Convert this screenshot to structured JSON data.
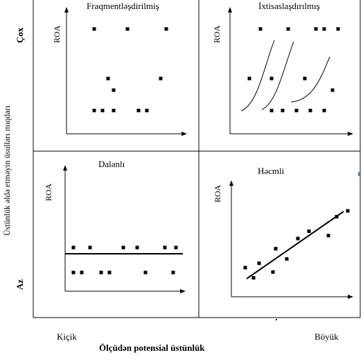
{
  "y_axis": {
    "label": "Üstünlük əldə etməyin üsulları mıqdarı",
    "top_label": "Çox",
    "bottom_label": "Az"
  },
  "x_axis": {
    "label": "Ölçüdən potensial üstünlük",
    "left_label": "Kiçik",
    "right_label": "Böyük"
  },
  "panels": [
    {
      "id": "fragmented",
      "title": "Fraqmentləşdirilmiş",
      "axis_label": "ROA",
      "points": [
        [
          1,
          7.2
        ],
        [
          2.2,
          7.2
        ],
        [
          3.6,
          7.2
        ],
        [
          1.5,
          3.8
        ],
        [
          3.4,
          3.8
        ],
        [
          1.7,
          3.0
        ],
        [
          1,
          1.6
        ],
        [
          1.3,
          1.6
        ],
        [
          1.7,
          1.6
        ],
        [
          2.6,
          1.6
        ],
        [
          2.9,
          1.6
        ]
      ]
    },
    {
      "id": "specialized",
      "title": "İxtisaslaşdırılmış",
      "axis_label": "ROA",
      "points": [
        [
          1.1,
          7.2
        ],
        [
          2.1,
          7.2
        ],
        [
          3.1,
          7.2
        ],
        [
          3.4,
          7.2
        ],
        [
          3.9,
          7.2
        ],
        [
          0.7,
          3.8
        ],
        [
          1.5,
          3.8
        ],
        [
          2.7,
          3.8
        ],
        [
          1.5,
          1.6
        ],
        [
          1.9,
          1.6
        ],
        [
          2.4,
          1.6
        ],
        [
          2.9,
          1.6
        ],
        [
          3.4,
          1.6
        ],
        [
          3.7,
          3.0
        ]
      ],
      "curves": 3
    },
    {
      "id": "stalemate",
      "title": "Dalanlı",
      "axis_label": "ROA",
      "points": [
        [
          0.3,
          3.5
        ],
        [
          0.9,
          3.5
        ],
        [
          2.1,
          3.5
        ],
        [
          2.6,
          3.5
        ],
        [
          3.6,
          3.5
        ],
        [
          4.0,
          3.5
        ],
        [
          0.3,
          1.5
        ],
        [
          0.6,
          1.5
        ],
        [
          1.3,
          1.5
        ],
        [
          1.6,
          1.5
        ],
        [
          2.9,
          1.5
        ],
        [
          3.9,
          1.5
        ]
      ],
      "line": "horizontal"
    },
    {
      "id": "volume",
      "title": "Həcmli",
      "axis_label": "ROA",
      "points": [
        [
          0.5,
          2.0
        ],
        [
          1.0,
          2.3
        ],
        [
          0.8,
          1.3
        ],
        [
          1.5,
          1.7
        ],
        [
          2.0,
          2.6
        ],
        [
          1.6,
          3.3
        ],
        [
          2.4,
          4.0
        ],
        [
          2.8,
          4.5
        ],
        [
          3.5,
          4.2
        ],
        [
          3.8,
          5.5
        ],
        [
          4.2,
          5.9
        ]
      ],
      "line": "trend"
    }
  ]
}
